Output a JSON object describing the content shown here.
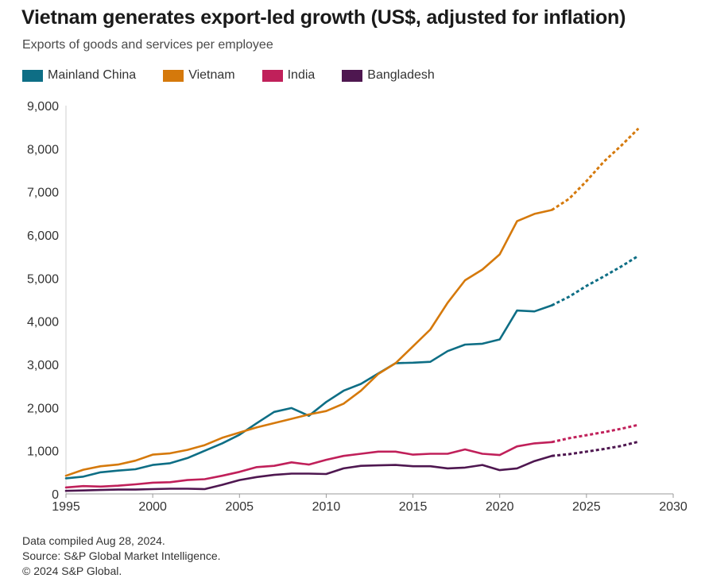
{
  "title": "Vietnam generates export-led growth (US$, adjusted for inflation)",
  "subtitle": "Exports of goods and services per employee",
  "footer": {
    "line1": "Data compiled Aug 28, 2024.",
    "line2": "Source: S&P Global Market Intelligence.",
    "line3": "© 2024 S&P Global."
  },
  "chart_data": {
    "type": "line",
    "title": "Vietnam generates export-led growth (US$, adjusted for inflation)",
    "subtitle": "Exports of goods and services per employee",
    "xlim": [
      1995,
      2030
    ],
    "ylim": [
      0,
      9000
    ],
    "x_ticks": [
      "1995",
      "2000",
      "2005",
      "2010",
      "2015",
      "2020",
      "2025",
      "2030"
    ],
    "y_ticks": [
      "0",
      "1,000",
      "2,000",
      "3,000",
      "4,000",
      "5,000",
      "6,000",
      "7,000",
      "8,000",
      "9,000"
    ],
    "grid": false,
    "legend_position": "top-left",
    "forecast_note": "dashed segments 2023-2028",
    "series": [
      {
        "name": "Mainland China",
        "color": "#0e6e85",
        "actual": [
          [
            1995,
            360
          ],
          [
            1996,
            400
          ],
          [
            1997,
            500
          ],
          [
            1998,
            540
          ],
          [
            1999,
            570
          ],
          [
            2000,
            670
          ],
          [
            2001,
            710
          ],
          [
            2002,
            830
          ],
          [
            2003,
            1000
          ],
          [
            2004,
            1170
          ],
          [
            2005,
            1370
          ],
          [
            2006,
            1640
          ],
          [
            2007,
            1900
          ],
          [
            2008,
            1990
          ],
          [
            2009,
            1810
          ],
          [
            2010,
            2130
          ],
          [
            2011,
            2390
          ],
          [
            2012,
            2550
          ],
          [
            2013,
            2790
          ],
          [
            2014,
            3030
          ],
          [
            2015,
            3040
          ],
          [
            2016,
            3060
          ],
          [
            2017,
            3310
          ],
          [
            2018,
            3460
          ],
          [
            2019,
            3480
          ],
          [
            2020,
            3580
          ],
          [
            2021,
            4250
          ],
          [
            2022,
            4230
          ],
          [
            2023,
            4370
          ]
        ],
        "forecast": [
          [
            2023,
            4370
          ],
          [
            2024,
            4570
          ],
          [
            2025,
            4820
          ],
          [
            2026,
            5040
          ],
          [
            2027,
            5270
          ],
          [
            2028,
            5520
          ]
        ]
      },
      {
        "name": "Vietnam",
        "color": "#d5790b",
        "actual": [
          [
            1995,
            420
          ],
          [
            1996,
            560
          ],
          [
            1997,
            640
          ],
          [
            1998,
            680
          ],
          [
            1999,
            770
          ],
          [
            2000,
            910
          ],
          [
            2001,
            940
          ],
          [
            2002,
            1020
          ],
          [
            2003,
            1130
          ],
          [
            2004,
            1300
          ],
          [
            2005,
            1420
          ],
          [
            2006,
            1540
          ],
          [
            2007,
            1640
          ],
          [
            2008,
            1740
          ],
          [
            2009,
            1840
          ],
          [
            2010,
            1920
          ],
          [
            2011,
            2090
          ],
          [
            2012,
            2390
          ],
          [
            2013,
            2780
          ],
          [
            2014,
            3030
          ],
          [
            2015,
            3420
          ],
          [
            2016,
            3810
          ],
          [
            2017,
            4430
          ],
          [
            2018,
            4950
          ],
          [
            2019,
            5200
          ],
          [
            2020,
            5550
          ],
          [
            2021,
            6320
          ],
          [
            2022,
            6490
          ],
          [
            2023,
            6580
          ]
        ],
        "forecast": [
          [
            2023,
            6580
          ],
          [
            2024,
            6840
          ],
          [
            2025,
            7250
          ],
          [
            2026,
            7700
          ],
          [
            2027,
            8070
          ],
          [
            2028,
            8470
          ]
        ]
      },
      {
        "name": "India",
        "color": "#c0205a",
        "actual": [
          [
            1995,
            150
          ],
          [
            1996,
            180
          ],
          [
            1997,
            170
          ],
          [
            1998,
            190
          ],
          [
            1999,
            220
          ],
          [
            2000,
            260
          ],
          [
            2001,
            270
          ],
          [
            2002,
            320
          ],
          [
            2003,
            340
          ],
          [
            2004,
            420
          ],
          [
            2005,
            510
          ],
          [
            2006,
            620
          ],
          [
            2007,
            650
          ],
          [
            2008,
            730
          ],
          [
            2009,
            680
          ],
          [
            2010,
            790
          ],
          [
            2011,
            880
          ],
          [
            2012,
            930
          ],
          [
            2013,
            980
          ],
          [
            2014,
            980
          ],
          [
            2015,
            910
          ],
          [
            2016,
            930
          ],
          [
            2017,
            930
          ],
          [
            2018,
            1030
          ],
          [
            2019,
            930
          ],
          [
            2020,
            900
          ],
          [
            2021,
            1100
          ],
          [
            2022,
            1170
          ],
          [
            2023,
            1200
          ]
        ],
        "forecast": [
          [
            2023,
            1200
          ],
          [
            2024,
            1290
          ],
          [
            2025,
            1360
          ],
          [
            2026,
            1430
          ],
          [
            2027,
            1510
          ],
          [
            2028,
            1600
          ]
        ]
      },
      {
        "name": "Bangladesh",
        "color": "#4e1750",
        "actual": [
          [
            1995,
            70
          ],
          [
            1996,
            80
          ],
          [
            1997,
            90
          ],
          [
            1998,
            100
          ],
          [
            1999,
            100
          ],
          [
            2000,
            110
          ],
          [
            2001,
            120
          ],
          [
            2002,
            120
          ],
          [
            2003,
            110
          ],
          [
            2004,
            210
          ],
          [
            2005,
            320
          ],
          [
            2006,
            390
          ],
          [
            2007,
            440
          ],
          [
            2008,
            470
          ],
          [
            2009,
            470
          ],
          [
            2010,
            460
          ],
          [
            2011,
            590
          ],
          [
            2012,
            650
          ],
          [
            2013,
            660
          ],
          [
            2014,
            670
          ],
          [
            2015,
            640
          ],
          [
            2016,
            640
          ],
          [
            2017,
            590
          ],
          [
            2018,
            610
          ],
          [
            2019,
            670
          ],
          [
            2020,
            550
          ],
          [
            2021,
            590
          ],
          [
            2022,
            760
          ],
          [
            2023,
            880
          ]
        ],
        "forecast": [
          [
            2023,
            880
          ],
          [
            2024,
            920
          ],
          [
            2025,
            980
          ],
          [
            2026,
            1040
          ],
          [
            2027,
            1110
          ],
          [
            2028,
            1210
          ]
        ]
      }
    ]
  }
}
